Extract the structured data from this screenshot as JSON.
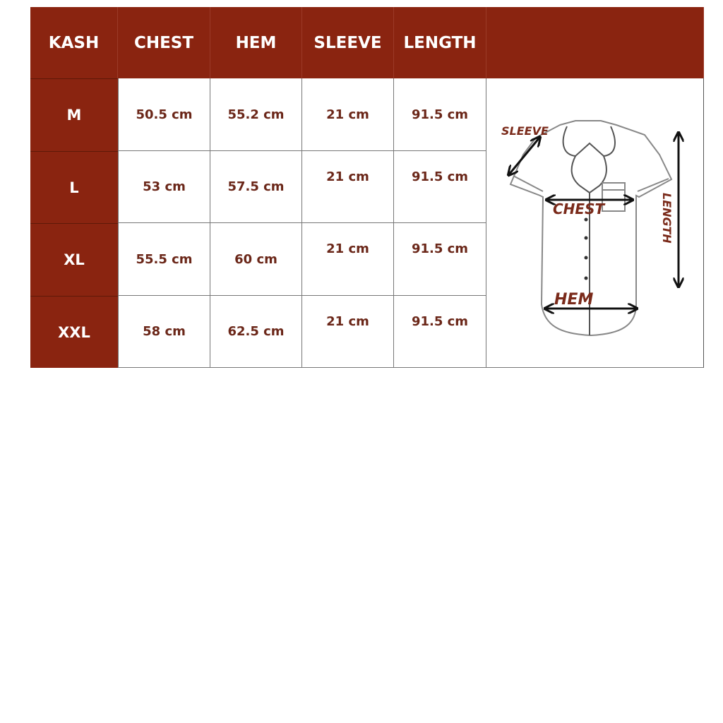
{
  "headers": [
    "KASH",
    "CHEST",
    "HEM",
    "SLEEVE",
    "LENGTH"
  ],
  "rows": [
    {
      "size": "M",
      "chest": "50.5 cm",
      "hem": "55.2 cm",
      "sleeve": "21 cm",
      "length": "91.5 cm"
    },
    {
      "size": "L",
      "chest": "53 cm",
      "hem": "57.5 cm",
      "sleeve": "21 cm",
      "length": "91.5 cm"
    },
    {
      "size": "XL",
      "chest": "55.5 cm",
      "hem": "60 cm",
      "sleeve": "21 cm",
      "length": "91.5 cm"
    },
    {
      "size": "XXL",
      "chest": "58 cm",
      "hem": "62.5 cm",
      "sleeve": "21 cm",
      "length": "91.5 cm"
    }
  ],
  "diagram": {
    "sleeve": "SLEEVE",
    "chest": "CHEST",
    "hem": "HEM",
    "length": "LENGTH"
  },
  "colors": {
    "header": "#8a2410",
    "value_text": "#6b2719"
  }
}
